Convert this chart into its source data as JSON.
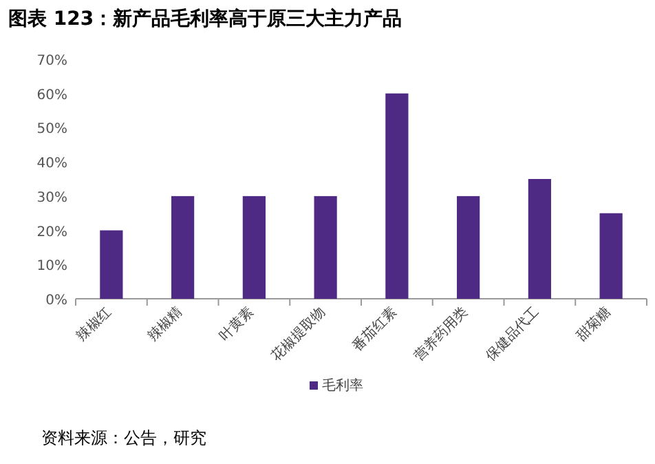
{
  "chart_data": {
    "type": "bar",
    "title": "图表 123：新产品毛利率高于原三大主力产品",
    "categories": [
      "辣椒红",
      "辣椒精",
      "叶黄素",
      "花椒提取物",
      "番茄红素",
      "营养药用类",
      "保健品代工",
      "甜菊糖"
    ],
    "series": [
      {
        "name": "毛利率",
        "color": "#4e2a84",
        "values": [
          20,
          30,
          30,
          30,
          60,
          30,
          35,
          25
        ]
      }
    ],
    "ylim": [
      0,
      70
    ],
    "yticks": [
      {
        "value": 0,
        "label": "0%"
      },
      {
        "value": 10,
        "label": "10%"
      },
      {
        "value": 20,
        "label": "20%"
      },
      {
        "value": 30,
        "label": "30%"
      },
      {
        "value": 40,
        "label": "40%"
      },
      {
        "value": 50,
        "label": "50%"
      },
      {
        "value": 60,
        "label": "60%"
      },
      {
        "value": 70,
        "label": "70%"
      }
    ],
    "legend": "bottom",
    "annotations": [
      "资料来源：公告，研究"
    ]
  }
}
